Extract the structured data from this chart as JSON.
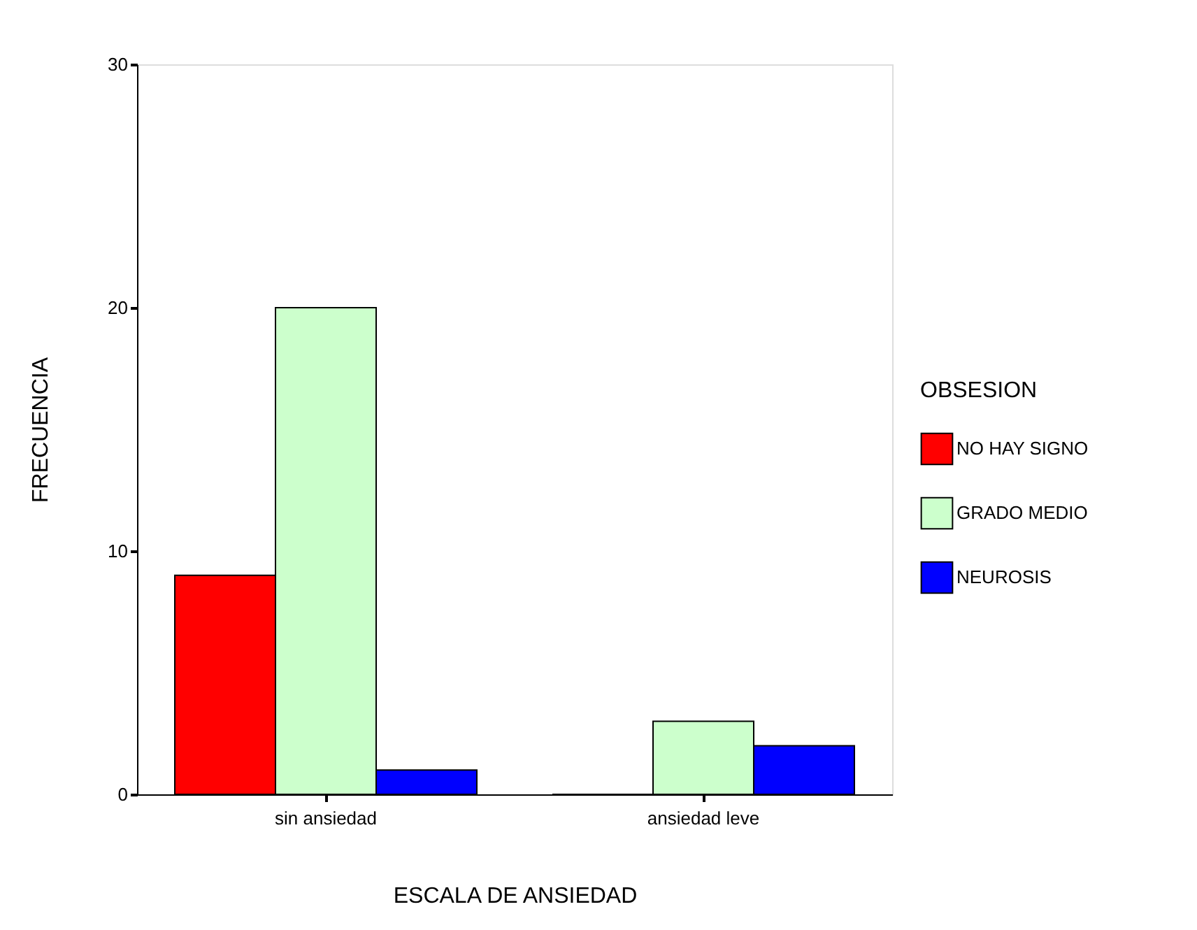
{
  "chart_data": {
    "type": "bar",
    "xlabel": "ESCALA DE ANSIEDAD",
    "ylabel": "FRECUENCIA",
    "legend_title": "OBSESION",
    "categories": [
      "sin ansiedad",
      "ansiedad leve"
    ],
    "series": [
      {
        "name": "NO HAY SIGNO",
        "color": "#ff0000",
        "values": [
          9,
          0
        ]
      },
      {
        "name": "GRADO MEDIO",
        "color": "#ccffcc",
        "values": [
          20,
          3
        ]
      },
      {
        "name": "NEUROSIS",
        "color": "#0000ff",
        "values": [
          1,
          2
        ]
      }
    ],
    "ylim": [
      0,
      30
    ],
    "yticks": [
      0,
      10,
      20,
      30
    ],
    "grid": false,
    "legend": "right"
  }
}
